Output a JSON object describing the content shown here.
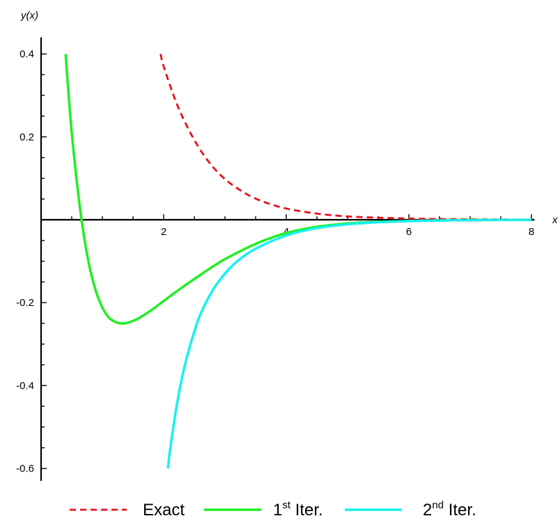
{
  "chart_data": {
    "type": "line",
    "title": "",
    "xlabel": "x",
    "ylabel": "y(x)",
    "xlim": [
      0,
      8.05
    ],
    "ylim": [
      -0.63,
      0.44
    ],
    "x_ticks": [
      2,
      4,
      6,
      8
    ],
    "x_tick_labels": [
      "2",
      "4",
      "6",
      "8"
    ],
    "y_ticks": [
      0.4,
      0.2,
      -0.2,
      -0.4,
      -0.6
    ],
    "y_tick_labels": [
      "0.4",
      "0.2",
      "-0.2",
      "-0.4",
      "-0.6"
    ],
    "grid": false,
    "legend_position": "bottom",
    "series": [
      {
        "name": "Exact",
        "color": "#e8101a",
        "dash": "dashed",
        "x": [
          1.95,
          2.0,
          2.2,
          2.4,
          2.6,
          2.8,
          3.0,
          3.2,
          3.4,
          3.6,
          3.8,
          4.0,
          4.3,
          4.6,
          5.0,
          5.5,
          6.0,
          6.5,
          7.0,
          7.5,
          8.0
        ],
        "y": [
          0.4,
          0.37,
          0.285,
          0.22,
          0.168,
          0.128,
          0.098,
          0.076,
          0.058,
          0.045,
          0.035,
          0.027,
          0.019,
          0.013,
          0.008,
          0.005,
          0.003,
          0.0018,
          0.001,
          0.0006,
          0.0003
        ]
      },
      {
        "name": "1st Iter.",
        "color": "#22ee22",
        "dash": "solid",
        "x": [
          0.4,
          0.45,
          0.5,
          0.6,
          0.7,
          0.8,
          0.9,
          1.0,
          1.1,
          1.2,
          1.3,
          1.4,
          1.5,
          1.6,
          1.8,
          2.0,
          2.2,
          2.5,
          2.8,
          3.0,
          3.3,
          3.6,
          4.0,
          4.5,
          5.0,
          5.5,
          6.0,
          6.5,
          7.0,
          8.0
        ],
        "y": [
          0.4,
          0.3,
          0.21,
          0.07,
          -0.04,
          -0.12,
          -0.175,
          -0.212,
          -0.235,
          -0.246,
          -0.25,
          -0.249,
          -0.244,
          -0.237,
          -0.218,
          -0.196,
          -0.174,
          -0.143,
          -0.113,
          -0.095,
          -0.072,
          -0.052,
          -0.032,
          -0.017,
          -0.009,
          -0.005,
          -0.003,
          -0.0015,
          -0.0008,
          -0.0002
        ]
      },
      {
        "name": "2nd Iter.",
        "color": "#17f0f0",
        "dash": "solid",
        "x": [
          2.07,
          2.1,
          2.2,
          2.3,
          2.4,
          2.5,
          2.6,
          2.8,
          3.0,
          3.2,
          3.5,
          4.0,
          4.5,
          5.0,
          5.5,
          6.0,
          6.5,
          7.0,
          7.5,
          8.0
        ],
        "y": [
          -0.6,
          -0.56,
          -0.46,
          -0.38,
          -0.32,
          -0.27,
          -0.228,
          -0.17,
          -0.13,
          -0.1,
          -0.07,
          -0.038,
          -0.02,
          -0.011,
          -0.006,
          -0.0033,
          -0.0018,
          -0.001,
          -0.0005,
          -0.0002
        ]
      }
    ],
    "legend": {
      "entries": [
        {
          "base": "Exact",
          "sup": "",
          "suffix": ""
        },
        {
          "base": "1",
          "sup": "st",
          "suffix": " Iter."
        },
        {
          "base": "2",
          "sup": "nd",
          "suffix": " Iter."
        }
      ]
    }
  }
}
